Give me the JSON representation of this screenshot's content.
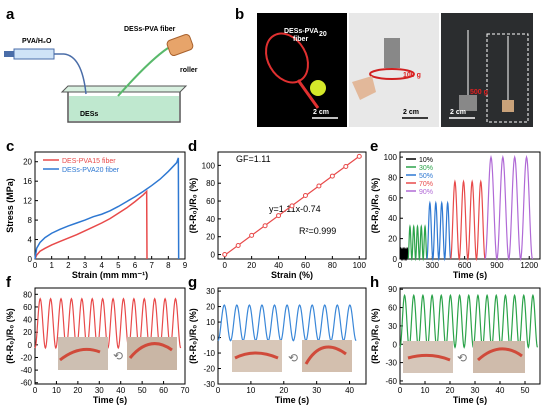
{
  "panels": {
    "a": {
      "label": "a",
      "text_pva": "PVA/H₂O",
      "text_fiber": "DESs-PVA fiber",
      "text_roller": "roller",
      "text_bath": "DESs"
    },
    "b": {
      "label": "b",
      "text_racket": "DESs-PVA",
      "text_racket_sub": "20",
      "text_racket_2": "fiber",
      "text_weight": "100 g",
      "text_weight2": "500 g",
      "scale1": "2 cm",
      "scale2": "2 cm",
      "scale3": "2 cm"
    },
    "c": {
      "label": "c"
    },
    "d": {
      "label": "d",
      "gf": "GF=1.11",
      "eq": "y=1.11x-0.74",
      "r2": "R²=0.999"
    },
    "e": {
      "label": "e"
    },
    "f": {
      "label": "f"
    },
    "g": {
      "label": "g"
    },
    "h": {
      "label": "h"
    }
  },
  "chart_data": [
    {
      "id": "c",
      "type": "line",
      "xlabel": "Strain (mm mm⁻¹)",
      "ylabel": "Stress (MPa)",
      "xlim": [
        0,
        9
      ],
      "ylim": [
        0,
        22
      ],
      "xticks": [
        0,
        1,
        2,
        3,
        4,
        5,
        6,
        7,
        8,
        9
      ],
      "yticks": [
        0,
        4,
        8,
        12,
        16,
        20
      ],
      "series": [
        {
          "name": "DES-PVA15 fiber",
          "color": "#e84a4a",
          "x": [
            0,
            0.1,
            0.3,
            0.6,
            1,
            1.5,
            2,
            2.5,
            3,
            3.5,
            4,
            4.5,
            5,
            5.5,
            6,
            6.5,
            6.7,
            6.72
          ],
          "y": [
            0,
            0.8,
            1.6,
            2.2,
            2.9,
            3.6,
            4.3,
            5.0,
            5.8,
            6.6,
            7.4,
            8.3,
            9.4,
            10.5,
            11.8,
            13.2,
            13.9,
            0
          ]
        },
        {
          "name": "DESs-PVA20 fiber",
          "color": "#2e78d2",
          "x": [
            0,
            0.1,
            0.3,
            0.6,
            1,
            1.5,
            2,
            2.5,
            3,
            3.5,
            4,
            4.5,
            5,
            5.5,
            6,
            6.5,
            7,
            7.5,
            8,
            8.5,
            8.6,
            8.62
          ],
          "y": [
            0,
            2.2,
            3.4,
            4.4,
            5.3,
            6.1,
            6.8,
            7.4,
            8.0,
            8.7,
            9.2,
            9.9,
            10.8,
            11.8,
            12.8,
            13.9,
            15.1,
            16.4,
            18.0,
            19.8,
            20.8,
            0
          ]
        }
      ],
      "legend": "top-left"
    },
    {
      "id": "d",
      "type": "scatter",
      "xlabel": "Strain (%)",
      "ylabel": "(R-R₀)/R₀ (%)",
      "xlim": [
        -5,
        105
      ],
      "ylim": [
        -5,
        115
      ],
      "xticks": [
        0,
        20,
        40,
        60,
        80,
        100
      ],
      "yticks": [
        0,
        20,
        40,
        60,
        80,
        100
      ],
      "series": [
        {
          "name": "",
          "color": "#e84a4a",
          "x": [
            0,
            10,
            20,
            30,
            40,
            50,
            60,
            70,
            80,
            90,
            100
          ],
          "y": [
            0,
            10.1,
            21.5,
            32.3,
            43.7,
            54.6,
            66.2,
            76.9,
            88.0,
            98.7,
            110.1
          ]
        }
      ]
    },
    {
      "id": "e",
      "type": "line",
      "xlabel": "Time (s)",
      "ylabel": "(R-R₀)/R₀ (%)",
      "xlim": [
        0,
        1300
      ],
      "ylim": [
        0,
        105
      ],
      "xticks": [
        0,
        300,
        600,
        900,
        1200
      ],
      "yticks": [
        0,
        20,
        40,
        60,
        80,
        100
      ],
      "series": [
        {
          "name": "10%",
          "color": "#000000",
          "t0": 0,
          "t1": 75,
          "cycles": 6,
          "amp": 10
        },
        {
          "name": "30%",
          "color": "#2ca34a",
          "t0": 75,
          "t1": 250,
          "cycles": 5,
          "amp": 32
        },
        {
          "name": "50%",
          "color": "#2e78d2",
          "t0": 250,
          "t1": 470,
          "cycles": 4,
          "amp": 55
        },
        {
          "name": "70%",
          "color": "#e84a4a",
          "t0": 470,
          "t1": 790,
          "cycles": 4,
          "amp": 76
        },
        {
          "name": "90%",
          "color": "#b06ad6",
          "t0": 790,
          "t1": 1230,
          "cycles": 4,
          "amp": 100
        }
      ],
      "legend": "top-left"
    },
    {
      "id": "f",
      "type": "line",
      "xlabel": "Time (s)",
      "ylabel": "(R-R₀)/R₀ (%)",
      "xlim": [
        0,
        70
      ],
      "ylim": [
        -62,
        90
      ],
      "xticks": [
        0,
        10,
        20,
        30,
        40,
        50,
        60,
        70
      ],
      "yticks": [
        -60,
        -40,
        -20,
        0,
        20,
        40,
        60,
        80
      ],
      "series": [
        {
          "name": "",
          "color": "#e84a4a",
          "t0": 0,
          "t1": 68,
          "cycles": 14,
          "amp": 73
        }
      ]
    },
    {
      "id": "g",
      "type": "line",
      "xlabel": "Time (s)",
      "ylabel": "(R-R₀)/R₀ (%)",
      "xlim": [
        0,
        45
      ],
      "ylim": [
        -30,
        32
      ],
      "xticks": [
        0,
        10,
        20,
        30,
        40
      ],
      "yticks": [
        -30,
        -20,
        -10,
        0,
        10,
        20,
        30
      ],
      "series": [
        {
          "name": "",
          "color": "#3a87d8",
          "t0": 0,
          "t1": 42,
          "cycles": 11,
          "amp": 21
        }
      ]
    },
    {
      "id": "h",
      "type": "line",
      "xlabel": "Time (s)",
      "ylabel": "(R-R₀)/R₀ (%)",
      "xlim": [
        0,
        56
      ],
      "ylim": [
        -65,
        92
      ],
      "xticks": [
        0,
        10,
        20,
        30,
        40,
        50
      ],
      "yticks": [
        -60,
        -30,
        0,
        30,
        60,
        90
      ],
      "series": [
        {
          "name": "",
          "color": "#2ca34a",
          "t0": 0,
          "t1": 55,
          "cycles": 15,
          "amp": 80
        }
      ]
    }
  ]
}
